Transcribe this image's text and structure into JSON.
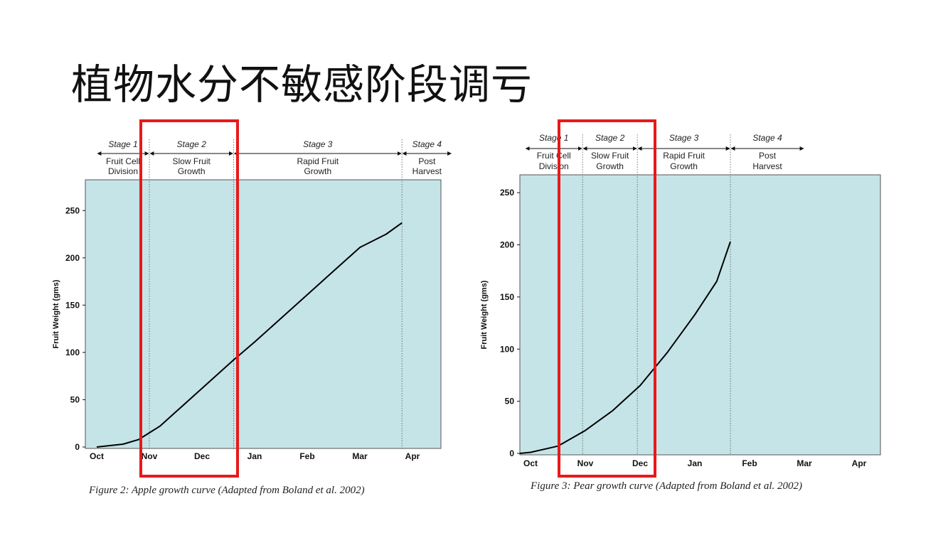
{
  "slide": {
    "title": "植物水分不敏感阶段调亏"
  },
  "colors": {
    "plot_bg": "#c5e4e7",
    "curve": "#000000",
    "highlight": "#e8191a"
  },
  "chart_data": [
    {
      "type": "line",
      "id": "apple",
      "caption": "Figure 2: Apple growth curve (Adapted from Boland et al. 2002)",
      "ylabel": "Fruit Weight (gms)",
      "xlabel": "",
      "categories": [
        "Oct",
        "Nov",
        "Dec",
        "Jan",
        "Feb",
        "Mar",
        "Apr"
      ],
      "ylim": [
        0,
        280
      ],
      "yticks": [
        0,
        50,
        100,
        150,
        200,
        250
      ],
      "grid": false,
      "stages": [
        {
          "title": "Stage 1",
          "desc": [
            "Fruit Cell",
            "Division"
          ],
          "from": 0,
          "to": 1.0
        },
        {
          "title": "Stage 2",
          "desc": [
            "Slow Fruit",
            "Growth"
          ],
          "from": 1.0,
          "to": 2.6
        },
        {
          "title": "Stage 3",
          "desc": [
            "Rapid Fruit",
            "Growth"
          ],
          "from": 2.6,
          "to": 5.8
        },
        {
          "title": "Stage 4",
          "desc": [
            "Post",
            "Harvest"
          ],
          "from": 5.8,
          "to": 6.75
        }
      ],
      "highlight_stage": 1,
      "series": [
        {
          "x": [
            0,
            0.5,
            0.8,
            1.0,
            1.2,
            1.5,
            2.0,
            2.6,
            3.0,
            3.5,
            4.0,
            4.5,
            5.0,
            5.5,
            5.8
          ],
          "y": [
            0,
            3,
            8,
            15,
            22,
            37,
            62,
            92,
            111,
            136,
            161,
            186,
            211,
            225,
            237
          ]
        }
      ]
    },
    {
      "type": "line",
      "id": "pear",
      "caption": "Figure 3: Pear growth curve (Adapted from Boland et al. 2002)",
      "ylabel": "Fruit Weight (gms)",
      "xlabel": "",
      "categories": [
        "Oct",
        "Nov",
        "Dec",
        "Jan",
        "Feb",
        "Mar",
        "Apr"
      ],
      "ylim": [
        0,
        265
      ],
      "yticks": [
        0,
        50,
        100,
        150,
        200,
        250
      ],
      "grid": false,
      "stages": [
        {
          "title": "Stage 1",
          "desc": [
            "Fruit Cell",
            "Division"
          ],
          "from": -0.1,
          "to": 0.95
        },
        {
          "title": "Stage 2",
          "desc": [
            "Slow Fruit",
            "Growth"
          ],
          "from": 0.95,
          "to": 1.95
        },
        {
          "title": "Stage 3",
          "desc": [
            "Rapid Fruit",
            "Growth"
          ],
          "from": 1.95,
          "to": 3.65
        },
        {
          "title": "Stage 4",
          "desc": [
            "Post",
            "Harvest"
          ],
          "from": 3.65,
          "to": 5.0
        }
      ],
      "highlight_stage": 1,
      "series": [
        {
          "x": [
            -0.2,
            0,
            0.5,
            1.0,
            1.5,
            2.0,
            2.5,
            3.0,
            3.4,
            3.65
          ],
          "y": [
            0,
            1,
            7,
            22,
            41,
            65,
            97,
            133,
            165,
            203
          ]
        }
      ]
    }
  ]
}
